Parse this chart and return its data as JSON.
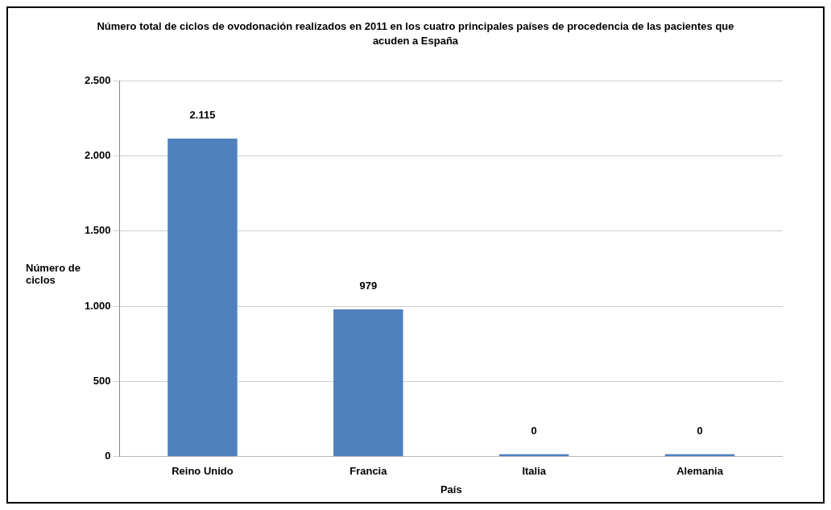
{
  "chart_data": {
    "type": "bar",
    "title": "Número total de ciclos de ovodonación realizados en 2011 en los cuatro principales países de procedencia de las pacientes que acuden a España",
    "xlabel": "País",
    "ylabel": "Número de ciclos",
    "categories": [
      "Reino Unido",
      "Francia",
      "Italia",
      "Alemania"
    ],
    "values": [
      2115,
      979,
      0,
      0
    ],
    "value_labels": [
      "2.115",
      "979",
      "0",
      "0"
    ],
    "color": "#4f81bd",
    "ylim": [
      0,
      2500
    ],
    "yticks": [
      {
        "value": 0,
        "label": "0"
      },
      {
        "value": 500,
        "label": "500"
      },
      {
        "value": 1000,
        "label": "1.000"
      },
      {
        "value": 1500,
        "label": "1.500"
      },
      {
        "value": 2000,
        "label": "2.000"
      },
      {
        "value": 2500,
        "label": "2.500"
      }
    ],
    "grid": "y",
    "legend": false
  }
}
